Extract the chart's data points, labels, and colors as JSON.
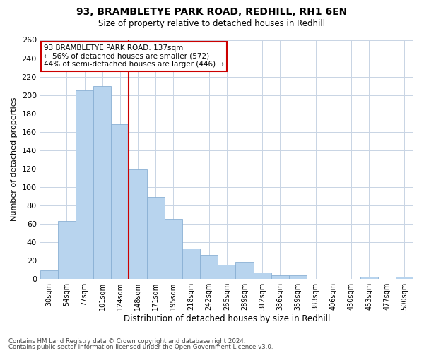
{
  "title1": "93, BRAMBLETYE PARK ROAD, REDHILL, RH1 6EN",
  "title2": "Size of property relative to detached houses in Redhill",
  "xlabel": "Distribution of detached houses by size in Redhill",
  "ylabel": "Number of detached properties",
  "bar_labels": [
    "30sqm",
    "54sqm",
    "77sqm",
    "101sqm",
    "124sqm",
    "148sqm",
    "171sqm",
    "195sqm",
    "218sqm",
    "242sqm",
    "265sqm",
    "289sqm",
    "312sqm",
    "336sqm",
    "359sqm",
    "383sqm",
    "406sqm",
    "430sqm",
    "453sqm",
    "477sqm",
    "500sqm"
  ],
  "bar_values": [
    9,
    63,
    205,
    210,
    168,
    119,
    89,
    65,
    33,
    26,
    15,
    18,
    7,
    4,
    4,
    0,
    0,
    0,
    2,
    0,
    2
  ],
  "bar_color": "#b8d4ee",
  "bar_edge_color": "#8ab0d4",
  "vline_x_index": 4.5,
  "vline_color": "#cc0000",
  "annotation_line1": "93 BRAMBLETYE PARK ROAD: 137sqm",
  "annotation_line2": "← 56% of detached houses are smaller (572)",
  "annotation_line3": "44% of semi-detached houses are larger (446) →",
  "annotation_box_color": "#ffffff",
  "annotation_box_edge": "#cc0000",
  "ylim": [
    0,
    260
  ],
  "yticks": [
    0,
    20,
    40,
    60,
    80,
    100,
    120,
    140,
    160,
    180,
    200,
    220,
    240,
    260
  ],
  "footer1": "Contains HM Land Registry data © Crown copyright and database right 2024.",
  "footer2": "Contains public sector information licensed under the Open Government Licence v3.0.",
  "background_color": "#ffffff",
  "grid_color": "#c8d4e4"
}
